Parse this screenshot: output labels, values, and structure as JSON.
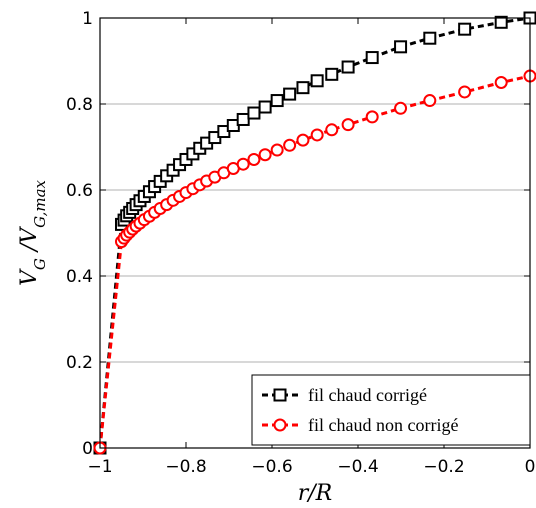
{
  "chart_data": {
    "type": "line",
    "xlabel": "r/R",
    "ylabel_main": "V",
    "ylabel_main_sub": "G",
    "ylabel_sep": " /V",
    "ylabel_den_sub": "G,max",
    "xlim": [
      -1,
      0
    ],
    "ylim": [
      0,
      1
    ],
    "xticks": [
      "−1",
      "−0.8",
      "−0.6",
      "−0.4",
      "−0.2",
      "0"
    ],
    "xtick_values": [
      -1,
      -0.8,
      -0.6,
      -0.4,
      -0.2,
      0
    ],
    "yticks": [
      "0",
      "0.2",
      "0.4",
      "0.6",
      "0.8",
      "1"
    ],
    "ytick_values": [
      0,
      0.2,
      0.4,
      0.6,
      0.8,
      1
    ],
    "grid": "horizontal",
    "legend_position": "bottom-right",
    "series": [
      {
        "name": "fil chaud corrigé",
        "color": "#000000",
        "marker": "square",
        "linestyle": "dashed",
        "points": [
          [
            -1.0,
            0.0
          ],
          [
            -0.95,
            0.52
          ],
          [
            -0.944,
            0.53
          ],
          [
            -0.938,
            0.54
          ],
          [
            -0.931,
            0.548
          ],
          [
            -0.924,
            0.557
          ],
          [
            -0.916,
            0.566
          ],
          [
            -0.907,
            0.575
          ],
          [
            -0.897,
            0.585
          ],
          [
            -0.885,
            0.596
          ],
          [
            -0.873,
            0.608
          ],
          [
            -0.86,
            0.62
          ],
          [
            -0.845,
            0.633
          ],
          [
            -0.83,
            0.646
          ],
          [
            -0.815,
            0.659
          ],
          [
            -0.8,
            0.671
          ],
          [
            -0.784,
            0.684
          ],
          [
            -0.768,
            0.697
          ],
          [
            -0.752,
            0.709
          ],
          [
            -0.733,
            0.722
          ],
          [
            -0.712,
            0.736
          ],
          [
            -0.69,
            0.75
          ],
          [
            -0.667,
            0.764
          ],
          [
            -0.642,
            0.779
          ],
          [
            -0.616,
            0.793
          ],
          [
            -0.588,
            0.808
          ],
          [
            -0.559,
            0.823
          ],
          [
            -0.528,
            0.838
          ],
          [
            -0.495,
            0.854
          ],
          [
            -0.461,
            0.869
          ],
          [
            -0.423,
            0.886
          ],
          [
            -0.367,
            0.908
          ],
          [
            -0.301,
            0.933
          ],
          [
            -0.233,
            0.953
          ],
          [
            -0.152,
            0.974
          ],
          [
            -0.067,
            0.99
          ],
          [
            0.0,
            1.0
          ]
        ]
      },
      {
        "name": "fil chaud non corrigé",
        "color": "#ff0000",
        "marker": "circle",
        "linestyle": "dashed",
        "points": [
          [
            -1.0,
            0.0
          ],
          [
            -0.95,
            0.48
          ],
          [
            -0.944,
            0.488
          ],
          [
            -0.938,
            0.495
          ],
          [
            -0.931,
            0.502
          ],
          [
            -0.924,
            0.509
          ],
          [
            -0.916,
            0.516
          ],
          [
            -0.907,
            0.523
          ],
          [
            -0.897,
            0.531
          ],
          [
            -0.885,
            0.539
          ],
          [
            -0.873,
            0.548
          ],
          [
            -0.86,
            0.557
          ],
          [
            -0.845,
            0.566
          ],
          [
            -0.83,
            0.576
          ],
          [
            -0.815,
            0.585
          ],
          [
            -0.8,
            0.594
          ],
          [
            -0.784,
            0.603
          ],
          [
            -0.768,
            0.612
          ],
          [
            -0.752,
            0.621
          ],
          [
            -0.733,
            0.63
          ],
          [
            -0.712,
            0.64
          ],
          [
            -0.69,
            0.65
          ],
          [
            -0.667,
            0.66
          ],
          [
            -0.642,
            0.671
          ],
          [
            -0.616,
            0.682
          ],
          [
            -0.588,
            0.693
          ],
          [
            -0.559,
            0.704
          ],
          [
            -0.528,
            0.716
          ],
          [
            -0.495,
            0.728
          ],
          [
            -0.461,
            0.74
          ],
          [
            -0.423,
            0.752
          ],
          [
            -0.367,
            0.77
          ],
          [
            -0.301,
            0.79
          ],
          [
            -0.233,
            0.808
          ],
          [
            -0.152,
            0.828
          ],
          [
            -0.067,
            0.85
          ],
          [
            0.0,
            0.865
          ]
        ]
      }
    ]
  }
}
